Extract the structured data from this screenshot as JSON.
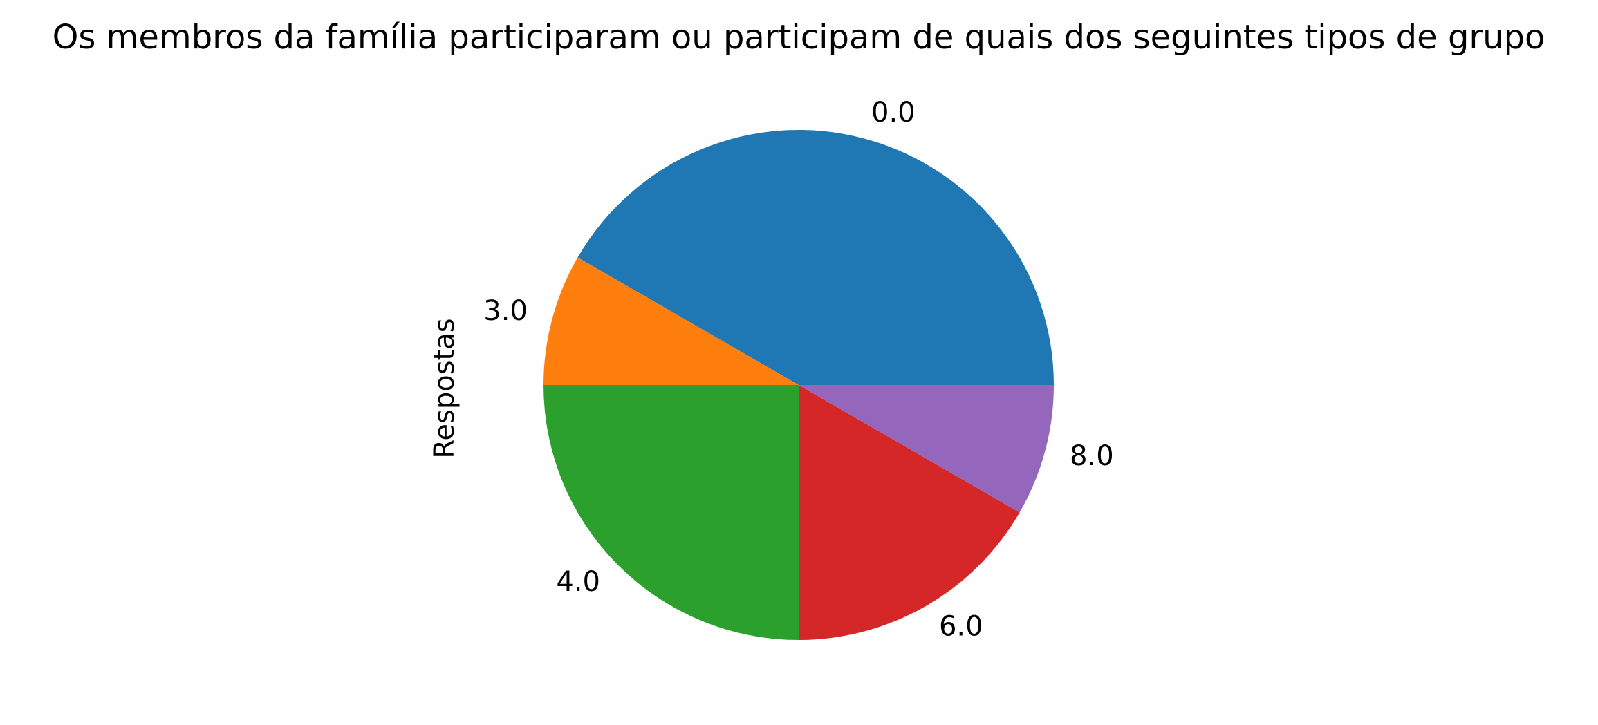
{
  "chart_data": {
    "type": "pie",
    "title": "Os membros da família participaram ou participam de quais dos seguintes tipos de grupo",
    "ylabel": "Respostas",
    "categories": [
      "0.0",
      "3.0",
      "4.0",
      "6.0",
      "8.0"
    ],
    "values": [
      5,
      1,
      3,
      2,
      1
    ],
    "colors": [
      "#1f77b4",
      "#ff7f0e",
      "#2ca02c",
      "#d62728",
      "#9467bd"
    ],
    "start_angle_deg": 0,
    "direction": "counterclockwise"
  }
}
